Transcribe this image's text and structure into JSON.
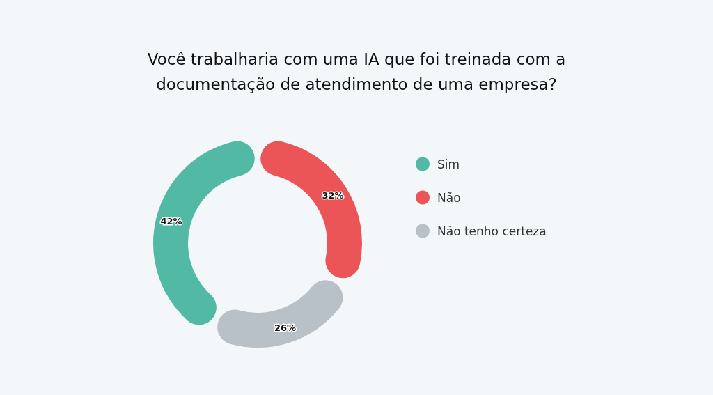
{
  "chart_data": {
    "type": "donut",
    "title": "Você trabalharia com uma IA que foi treinada com a\ndocumentação de atendimento de uma empresa?",
    "categories": [
      "Sim",
      "Não",
      "Não tenho certeza"
    ],
    "values": [
      42,
      32,
      26
    ],
    "colors": [
      "#52b9a5",
      "#ec5557",
      "#b8c0c8"
    ],
    "value_labels": [
      "42%",
      "32%",
      "26%"
    ],
    "legend": "right"
  }
}
